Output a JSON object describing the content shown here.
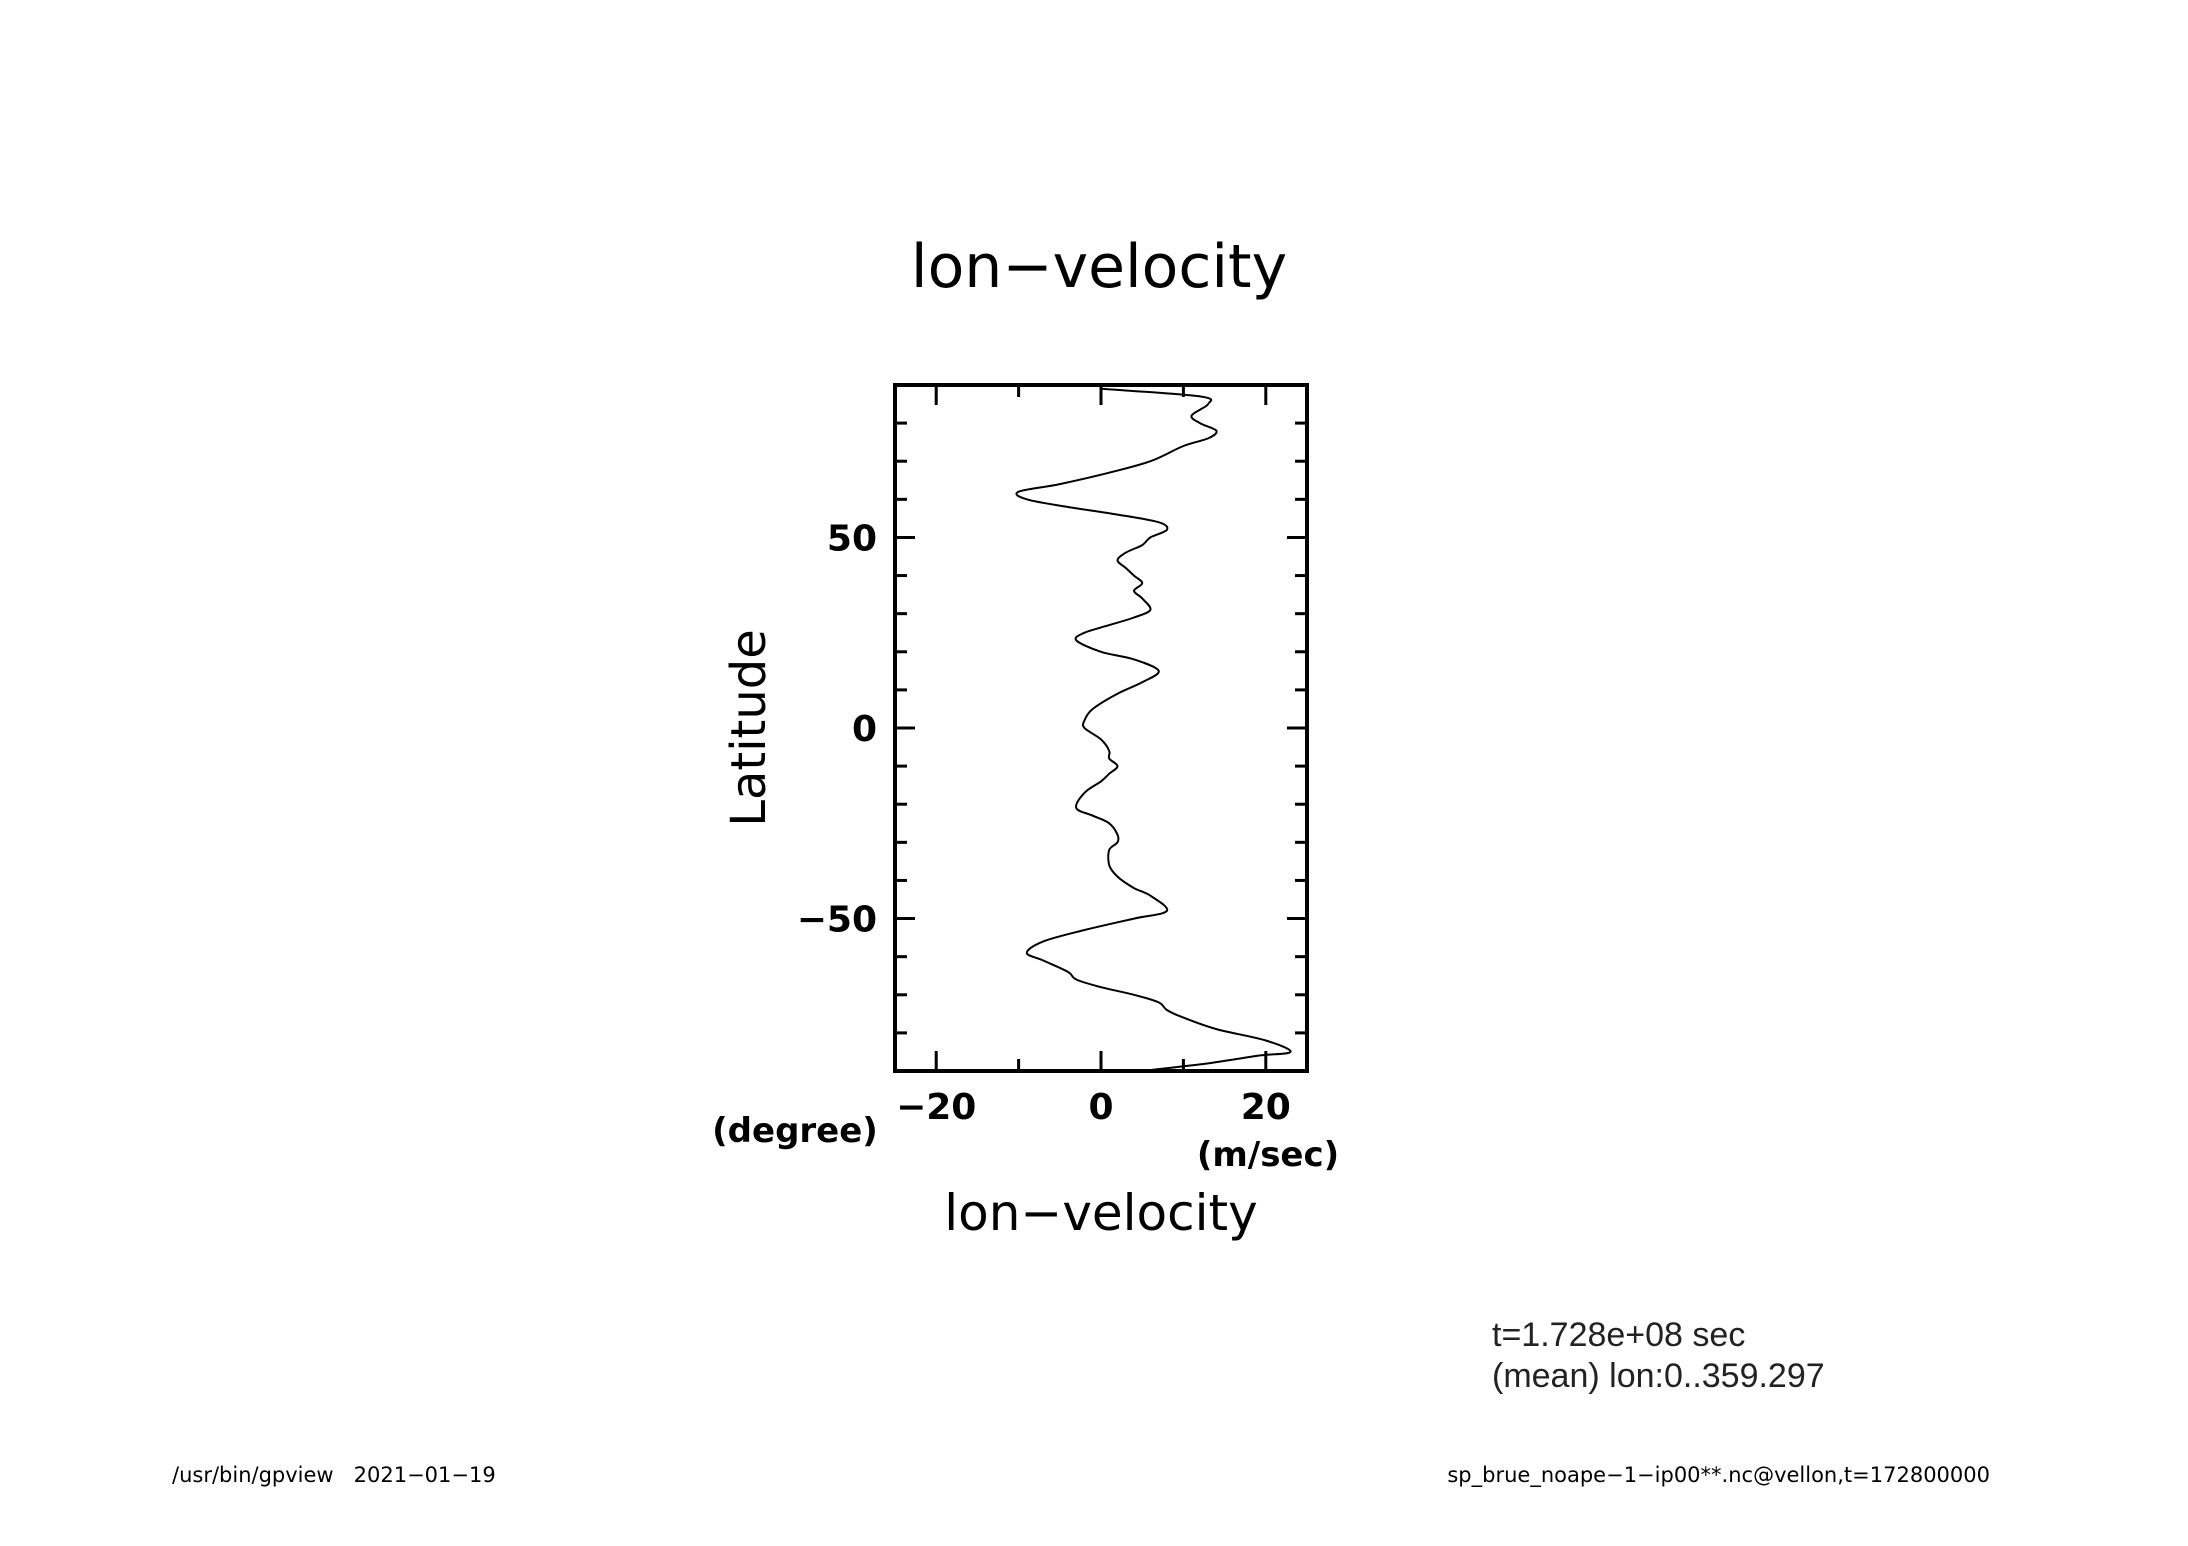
{
  "chart_data": {
    "type": "line",
    "title": "lon−velocity",
    "xlabel": "lon−velocity",
    "xunit": "(m/sec)",
    "ylabel": "Latitude",
    "yunit": "(degree)",
    "xlim": [
      -25,
      25
    ],
    "ylim": [
      -90,
      90
    ],
    "xticks": [
      -20,
      0,
      20
    ],
    "xtick_labels": [
      "−20",
      "0",
      "20"
    ],
    "yticks": [
      -50,
      0,
      50
    ],
    "ytick_labels": [
      "−50",
      "0",
      "50"
    ],
    "grid": false,
    "legend": "none",
    "series": [
      {
        "x": [
          0,
          12,
          13,
          11,
          12,
          14,
          13,
          10,
          6,
          1,
          -5,
          -10,
          -9,
          -4,
          2,
          7,
          8,
          6,
          5,
          3,
          2,
          3,
          4,
          5,
          4,
          5,
          6,
          4,
          1,
          -2,
          -3,
          0,
          4,
          7,
          5,
          2,
          -1,
          -2,
          -2,
          0,
          1,
          1,
          2,
          1,
          0,
          -2,
          -3,
          -1,
          1,
          2,
          2,
          1,
          1,
          2,
          4,
          6,
          8,
          4,
          -2,
          -7,
          -9,
          -7,
          -4,
          -3,
          0,
          4,
          7,
          8,
          10,
          14,
          20,
          23,
          19,
          13,
          5
        ],
        "y": [
          89,
          87,
          85,
          82,
          80,
          78,
          76,
          74,
          70,
          67,
          64,
          62,
          60,
          58,
          56,
          54,
          52,
          50,
          48,
          46,
          44,
          42,
          40,
          38,
          36,
          34,
          31,
          29,
          27,
          25,
          23,
          20,
          18,
          15,
          12,
          9,
          5,
          2,
          0,
          -3,
          -6,
          -8,
          -10,
          -12,
          -14,
          -17,
          -21,
          -23,
          -25,
          -28,
          -30,
          -32,
          -36,
          -39,
          -42,
          -44,
          -48,
          -50,
          -53,
          -56,
          -59,
          -61,
          -64,
          -66,
          -68,
          -70,
          -72,
          -74,
          -76,
          -79,
          -82,
          -85,
          -86,
          -88,
          -90
        ]
      }
    ]
  },
  "footer": {
    "time": "t=1.728e+08 sec",
    "mean": "(mean) lon:0..359.297",
    "program": "/usr/bin/gpview   2021−01−19",
    "source": "sp_brue_noape−1−ip00**.nc@vellon,t=172800000"
  }
}
